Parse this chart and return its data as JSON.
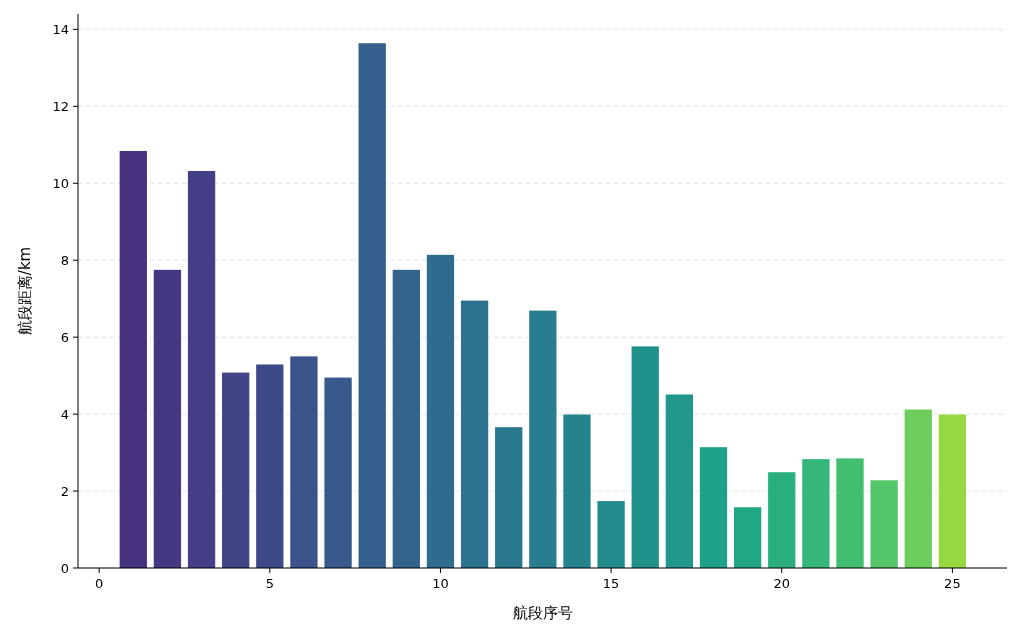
{
  "chart_data": {
    "type": "bar",
    "xlabel": "航段序号",
    "ylabel": "航段距离/km",
    "x": [
      1,
      2,
      3,
      4,
      5,
      6,
      7,
      8,
      9,
      10,
      11,
      12,
      13,
      14,
      15,
      16,
      17,
      18,
      19,
      20,
      21,
      22,
      23,
      24,
      25
    ],
    "values": [
      10.84,
      7.75,
      10.32,
      5.08,
      5.29,
      5.5,
      4.95,
      13.64,
      7.75,
      8.14,
      6.95,
      3.66,
      6.69,
      3.99,
      1.74,
      5.76,
      4.51,
      3.14,
      1.58,
      2.49,
      2.83,
      2.85,
      2.28,
      4.12,
      3.99
    ],
    "colors": [
      "#46327e",
      "#453781",
      "#433e85",
      "#414487",
      "#3e4989",
      "#3b528b",
      "#38598c",
      "#355f8d",
      "#32648e",
      "#2f6b8e",
      "#2c728e",
      "#2a788e",
      "#287d8e",
      "#25838e",
      "#228b8d",
      "#21918c",
      "#1f978b",
      "#1fa088",
      "#22a785",
      "#2ab07f",
      "#35b779",
      "#42be71",
      "#54c568",
      "#6ccd5a",
      "#95d840"
    ],
    "xlim": [
      -0.62,
      26.6
    ],
    "xticks": [
      0,
      5,
      10,
      15,
      20,
      25
    ],
    "ylim": [
      0,
      14.4
    ],
    "yticks": [
      0,
      2,
      4,
      6,
      8,
      10,
      12,
      14
    ],
    "grid": "y"
  }
}
